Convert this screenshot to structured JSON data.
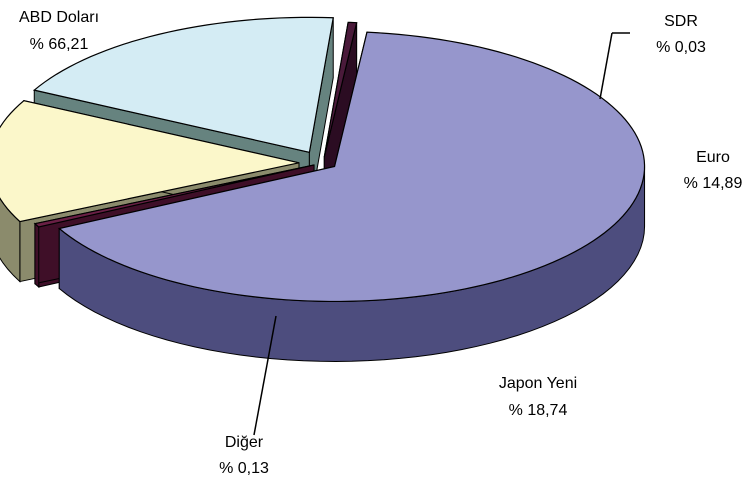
{
  "chart_data": {
    "type": "pie",
    "title": "",
    "style": "3d-exploded",
    "slices": [
      {
        "name": "ABD Doları",
        "value_text": "% 66,21",
        "value": 66.21,
        "top_color": "#9696cc",
        "side_color": "#4d4d7e"
      },
      {
        "name": "SDR",
        "value_text": "% 0,03",
        "value": 0.03,
        "top_color": "#6a1f45",
        "side_color": "#3f0f28"
      },
      {
        "name": "Euro",
        "value_text": "% 14,89",
        "value": 14.89,
        "top_color": "#fbf7ca",
        "side_color": "#8b8b6c"
      },
      {
        "name": "Japon Yeni",
        "value_text": "% 18,74",
        "value": 18.74,
        "top_color": "#d4ecf4",
        "side_color": "#66837f"
      },
      {
        "name": "Diğer",
        "value_text": "% 0,13",
        "value": 0.13,
        "top_color": "#4a1a3a",
        "side_color": "#2b0c22"
      }
    ]
  }
}
